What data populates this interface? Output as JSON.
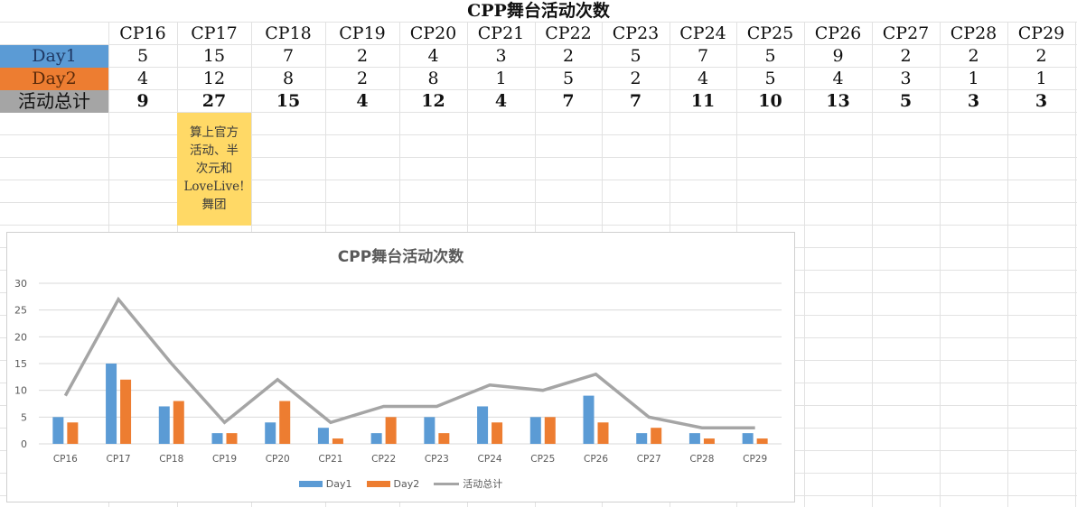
{
  "sheet": {
    "title": "CPP舞台活动次数",
    "headers": [
      "CP16",
      "CP17",
      "CP18",
      "CP19",
      "CP20",
      "CP21",
      "CP22",
      "CP23",
      "CP24",
      "CP25",
      "CP26",
      "CP27",
      "CP28",
      "CP29"
    ],
    "rows": [
      {
        "label": "Day1",
        "values": [
          5,
          15,
          7,
          2,
          4,
          3,
          2,
          5,
          7,
          5,
          9,
          2,
          2,
          2
        ]
      },
      {
        "label": "Day2",
        "values": [
          4,
          12,
          8,
          2,
          8,
          1,
          5,
          2,
          4,
          5,
          4,
          3,
          1,
          1
        ]
      },
      {
        "label": "活动总计",
        "values": [
          9,
          27,
          15,
          4,
          12,
          4,
          7,
          7,
          11,
          10,
          13,
          5,
          3,
          3
        ]
      }
    ],
    "note": "算上官方\n活动、半\n次元和\nLoveLive!\n舞团"
  },
  "colors": {
    "day1": "#5b9bd5",
    "day2": "#ed7d31",
    "total": "#a5a5a5",
    "note_bg": "#ffd966"
  },
  "chart_data": {
    "type": "bar",
    "title": "CPP舞台活动次数",
    "categories": [
      "CP16",
      "CP17",
      "CP18",
      "CP19",
      "CP20",
      "CP21",
      "CP22",
      "CP23",
      "CP24",
      "CP25",
      "CP26",
      "CP27",
      "CP28",
      "CP29"
    ],
    "series": [
      {
        "name": "Day1",
        "type": "bar",
        "color": "#5b9bd5",
        "values": [
          5,
          15,
          7,
          2,
          4,
          3,
          2,
          5,
          7,
          5,
          9,
          2,
          2,
          2
        ]
      },
      {
        "name": "Day2",
        "type": "bar",
        "color": "#ed7d31",
        "values": [
          4,
          12,
          8,
          2,
          8,
          1,
          5,
          2,
          4,
          5,
          4,
          3,
          1,
          1
        ]
      },
      {
        "name": "活动总计",
        "type": "line",
        "color": "#a5a5a5",
        "values": [
          9,
          27,
          15,
          4,
          12,
          4,
          7,
          7,
          11,
          10,
          13,
          5,
          3,
          3
        ]
      }
    ],
    "xlabel": "",
    "ylabel": "",
    "ylim": [
      0,
      30
    ],
    "yticks": [
      0,
      5,
      10,
      15,
      20,
      25,
      30
    ],
    "grid": true,
    "legend_position": "bottom"
  }
}
